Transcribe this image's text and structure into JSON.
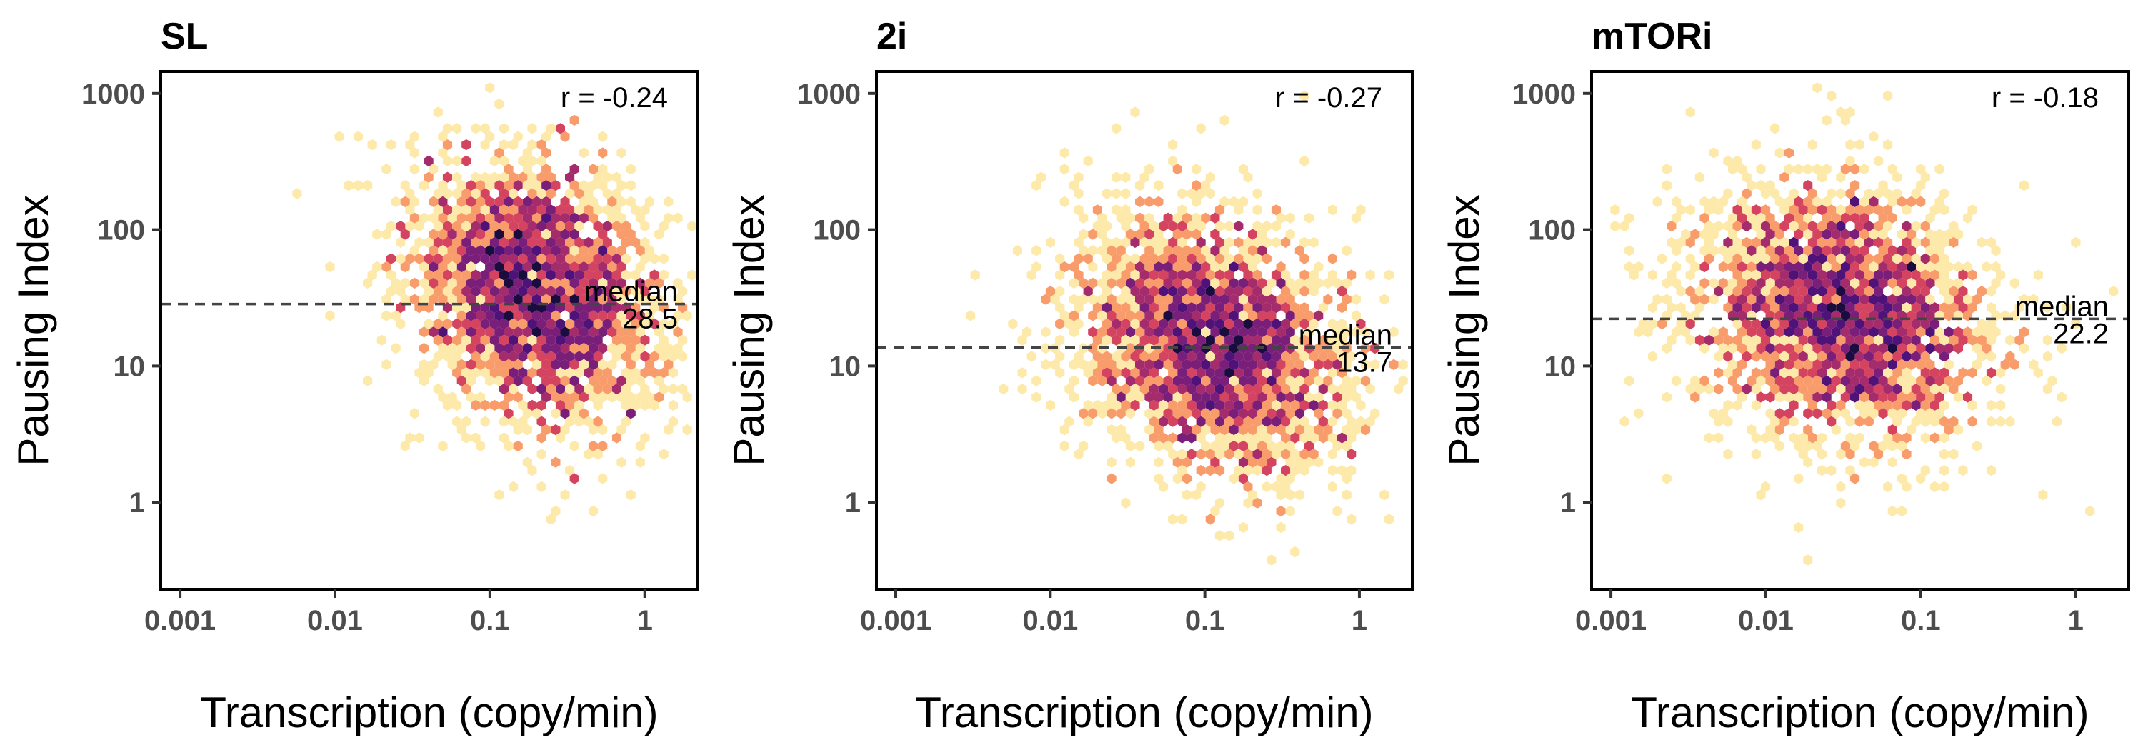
{
  "chart_data": [
    {
      "type": "scatter",
      "title": "SL",
      "xlabel": "Transcription (copy/min)",
      "ylabel": "Pausing Index",
      "x_scale": "log",
      "y_scale": "log",
      "xlim": [
        0.00075,
        2.2
      ],
      "ylim": [
        0.23,
        1450
      ],
      "x_ticks": [
        0.001,
        0.01,
        0.1,
        1
      ],
      "x_tick_labels": [
        "0.001",
        "0.01",
        "0.1",
        "1"
      ],
      "y_ticks": [
        1,
        10,
        100,
        1000
      ],
      "y_tick_labels": [
        "1",
        "10",
        "100",
        "1000"
      ],
      "correlation_label": "r = -0.24",
      "median_value": 28.5,
      "median_label_line1": "median",
      "median_label_line2": "28.5",
      "density_center": {
        "x": 0.2,
        "y": 35
      },
      "density_spread_log10": {
        "x": 0.42,
        "y": 0.5
      },
      "correlation": -0.24,
      "points_shown": 2200,
      "colormap": [
        "#fde9a9",
        "#fcc585",
        "#f99c6b",
        "#ef6c5b",
        "#d4435f",
        "#a52c6c",
        "#7a1f79",
        "#4f1279",
        "#1b0c3f"
      ],
      "grid": false,
      "legend": "none"
    },
    {
      "type": "scatter",
      "title": "2i",
      "xlabel": "Transcription (copy/min)",
      "ylabel": "Pausing Index",
      "x_scale": "log",
      "y_scale": "log",
      "xlim": [
        0.00075,
        2.2
      ],
      "ylim": [
        0.23,
        1450
      ],
      "x_ticks": [
        0.001,
        0.01,
        0.1,
        1
      ],
      "x_tick_labels": [
        "0.001",
        "0.01",
        "0.1",
        "1"
      ],
      "y_ticks": [
        1,
        10,
        100,
        1000
      ],
      "y_tick_labels": [
        "1",
        "10",
        "100",
        "1000"
      ],
      "correlation_label": "r = -0.27",
      "median_value": 13.7,
      "median_label_line1": "median",
      "median_label_line2": "13.7",
      "density_center": {
        "x": 0.11,
        "y": 15
      },
      "density_spread_log10": {
        "x": 0.45,
        "y": 0.5
      },
      "correlation": -0.27,
      "points_shown": 2200,
      "colormap": [
        "#fde9a9",
        "#fcc585",
        "#f99c6b",
        "#ef6c5b",
        "#d4435f",
        "#a52c6c",
        "#7a1f79",
        "#4f1279",
        "#1b0c3f"
      ],
      "grid": false,
      "legend": "none"
    },
    {
      "type": "scatter",
      "title": "mTORi",
      "xlabel": "Transcription (copy/min)",
      "ylabel": "Pausing Index",
      "x_scale": "log",
      "y_scale": "log",
      "xlim": [
        0.00075,
        2.2
      ],
      "ylim": [
        0.23,
        1450
      ],
      "x_ticks": [
        0.001,
        0.01,
        0.1,
        1
      ],
      "x_tick_labels": [
        "0.001",
        "0.01",
        "0.1",
        "1"
      ],
      "y_ticks": [
        1,
        10,
        100,
        1000
      ],
      "y_tick_labels": [
        "1",
        "10",
        "100",
        "1000"
      ],
      "correlation_label": "r = -0.18",
      "median_value": 22.2,
      "median_label_line1": "median",
      "median_label_line2": "22.2",
      "density_center": {
        "x": 0.03,
        "y": 24
      },
      "density_spread_log10": {
        "x": 0.5,
        "y": 0.5
      },
      "correlation": -0.18,
      "points_shown": 2200,
      "colormap": [
        "#fde9a9",
        "#fcc585",
        "#f99c6b",
        "#ef6c5b",
        "#d4435f",
        "#a52c6c",
        "#7a1f79",
        "#4f1279",
        "#1b0c3f"
      ],
      "grid": false,
      "legend": "none"
    }
  ]
}
